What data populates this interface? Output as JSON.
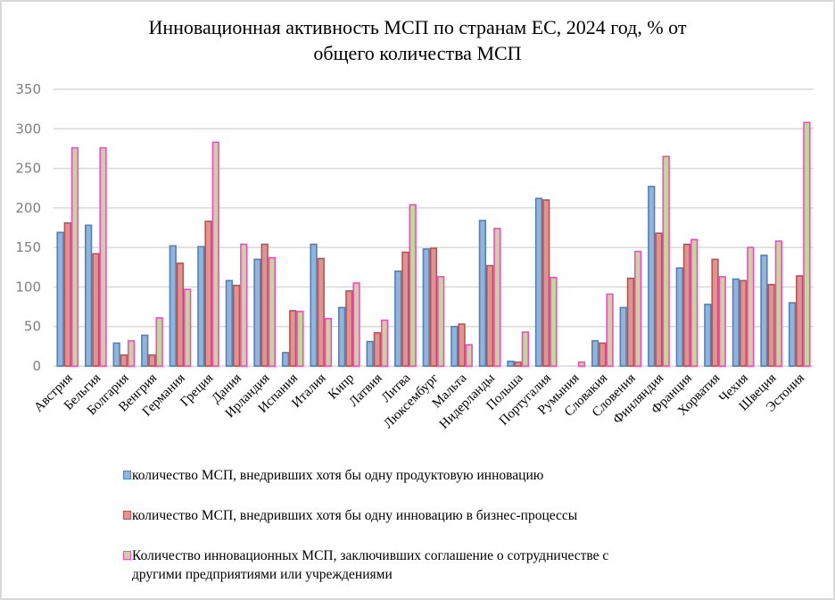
{
  "chart_data": {
    "type": "bar",
    "title": "Инновационная  активность МСП по странам ЕС, 2024  год, % от общего количества МСП",
    "title_lines": [
      "Инновационная  активность МСП по странам ЕС, 2024  год, % от",
      "общего количества МСП"
    ],
    "xlabel": "",
    "ylabel": "",
    "ylim": [
      0,
      350
    ],
    "yticks": [
      "0",
      "50",
      "100",
      "150",
      "200",
      "250",
      "300",
      "350"
    ],
    "grid": true,
    "legend_position": "bottom",
    "categories": [
      "Австрия",
      "Бельгия",
      "Болгария",
      "Венгрия",
      "Германия",
      "Греция",
      "Дания",
      "Ирландия",
      "Испания",
      "Италия",
      "Кипр",
      "Латвия",
      "Литва",
      "Люксембург",
      "Мальта",
      "Нидерланды",
      "Польша",
      "Португалия",
      "Румыния",
      "Словакия",
      "Словения",
      "Финляндия",
      "Франция",
      "Хорватия",
      "Чехия",
      "Швеция",
      "Эстония"
    ],
    "series": [
      {
        "name": "количество МСП, внедривших хотя бы одну продуктовую инновацию",
        "fill": "#95b3d7",
        "stroke": "#4f81bd",
        "values": [
          169,
          178,
          29,
          39,
          152,
          151,
          108,
          135,
          17,
          154,
          74,
          31,
          120,
          148,
          50,
          184,
          6,
          212,
          0,
          32,
          74,
          227,
          124,
          78,
          110,
          140,
          80
        ]
      },
      {
        "name": "количество МСП, внедривших хотя бы одну инновацию в бизнес-процессы",
        "fill": "#d99694",
        "stroke": "#c0504d",
        "values": [
          181,
          142,
          14,
          14,
          130,
          183,
          102,
          154,
          70,
          136,
          95,
          42,
          144,
          149,
          53,
          127,
          5,
          210,
          0,
          29,
          111,
          168,
          154,
          135,
          108,
          103,
          114
        ]
      },
      {
        "name": "Количество инновационных МСП, заключивших соглашение о сотрудничестве с другими предприятиями или учреждениями",
        "name_lines": [
          "Количество инновационных МСП, заключивших соглашение о сотрудничестве с",
          "другими предприятиями или учреждениями"
        ],
        "fill": "#c3d69b",
        "stroke": "#ff44cc",
        "values": [
          276,
          276,
          32,
          61,
          97,
          283,
          154,
          137,
          69,
          60,
          105,
          58,
          204,
          113,
          27,
          174,
          43,
          112,
          5,
          91,
          145,
          265,
          160,
          113,
          150,
          158,
          308
        ]
      }
    ]
  }
}
